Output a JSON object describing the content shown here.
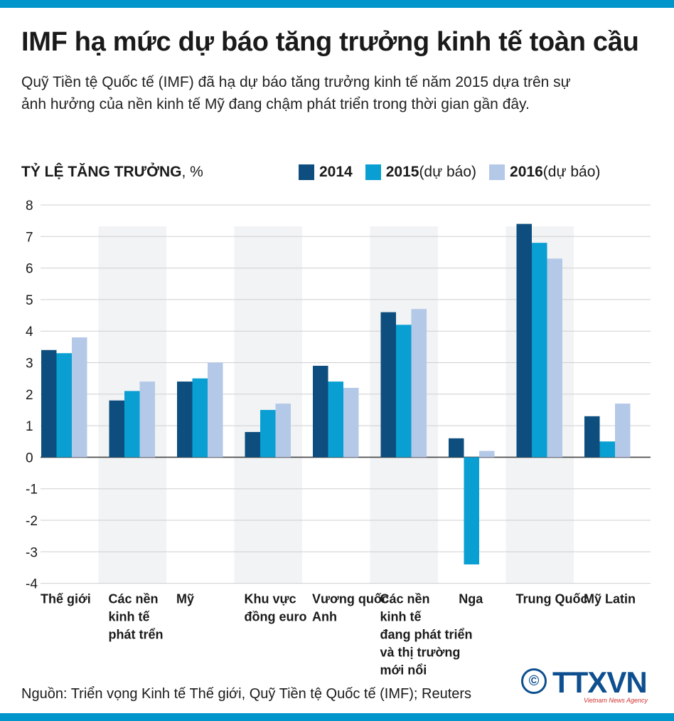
{
  "header": {
    "title": "IMF hạ mức dự báo tăng trưởng kinh tế toàn cầu",
    "subtitle": "Quỹ Tiền tệ Quốc tế (IMF) đã hạ dự báo tăng trưởng kinh tế năm 2015 dựa trên sự ảnh hưởng của nền kinh tế Mỹ đang chậm phát triển trong thời gian gần đây."
  },
  "footer": {
    "source": "Nguồn: Triển vọng Kinh tế Thế giới, Quỹ Tiền tệ Quốc tế (IMF); Reuters",
    "logo_text": "TTXVN",
    "logo_sub": "Vietnam News Agency",
    "logo_copyright": "©"
  },
  "chart_data": {
    "type": "bar",
    "ylabel_bold": "TỶ LỆ TĂNG TRƯỞNG",
    "ylabel_unit": ", %",
    "ylim": [
      -4,
      8
    ],
    "yticks": [
      "8",
      "7",
      "6",
      "5",
      "4",
      "3",
      "2",
      "1",
      "0",
      "-1",
      "-2",
      "-3",
      "-4"
    ],
    "grid": true,
    "legend_position": "top-right",
    "categories": [
      [
        "Thế giới"
      ],
      [
        "Các nền",
        "kinh tế",
        "phát trển"
      ],
      [
        "Mỹ"
      ],
      [
        "Khu vực",
        "đồng euro"
      ],
      [
        "Vương quốc",
        "Anh"
      ],
      [
        "Các nền",
        "kinh tế",
        "đang phát triển",
        "và thị trường",
        "mới nổi"
      ],
      [
        "Nga"
      ],
      [
        "Trung Quốc"
      ],
      [
        "Mỹ Latin"
      ]
    ],
    "series": [
      {
        "name": "2014",
        "name_suffix": "",
        "color": "#0d4e7e",
        "values": [
          3.4,
          1.8,
          2.4,
          0.8,
          2.9,
          4.6,
          0.6,
          7.4,
          1.3
        ]
      },
      {
        "name": "2015",
        "name_suffix": " (dự báo)",
        "color": "#0a9fd2",
        "values": [
          3.3,
          2.1,
          2.5,
          1.5,
          2.4,
          4.2,
          -3.4,
          6.8,
          0.5
        ]
      },
      {
        "name": "2016",
        "name_suffix": " (dự báo)",
        "color": "#b4c8e8",
        "values": [
          3.8,
          2.4,
          3.0,
          1.7,
          2.2,
          4.7,
          0.2,
          6.3,
          1.7
        ]
      }
    ]
  }
}
